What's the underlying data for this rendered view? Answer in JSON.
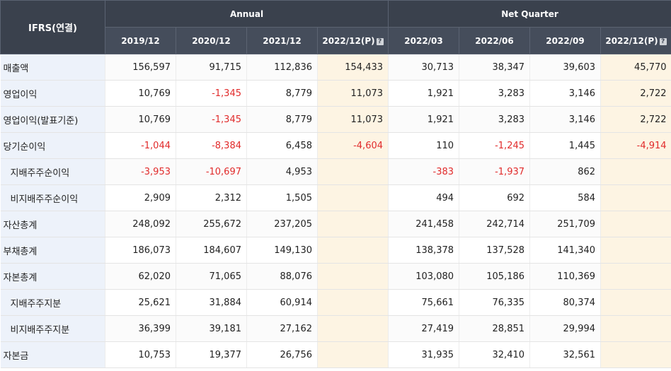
{
  "header": {
    "corner": "IFRS(연결)",
    "annual_label": "Annual",
    "quarter_label": "Net Quarter",
    "periods": [
      {
        "label": "2019/12",
        "estimate": false
      },
      {
        "label": "2020/12",
        "estimate": false
      },
      {
        "label": "2021/12",
        "estimate": false
      },
      {
        "label": "2022/12(P)",
        "estimate": true
      },
      {
        "label": "2022/03",
        "estimate": false
      },
      {
        "label": "2022/06",
        "estimate": false
      },
      {
        "label": "2022/09",
        "estimate": false
      },
      {
        "label": "2022/12(P)",
        "estimate": true
      }
    ],
    "help_icon": "question-mark-icon"
  },
  "colors": {
    "header_bg": "#3c4451",
    "label_bg": "#edf2fa",
    "estimate_bg": "#fdf4e3",
    "negative": "#e12b2b"
  },
  "rows": [
    {
      "label": "매출액",
      "indent": false,
      "values": [
        "156,597",
        "91,715",
        "112,836",
        "154,433",
        "30,713",
        "38,347",
        "39,603",
        "45,770"
      ]
    },
    {
      "label": "영업이익",
      "indent": false,
      "values": [
        "10,769",
        "-1,345",
        "8,779",
        "11,073",
        "1,921",
        "3,283",
        "3,146",
        "2,722"
      ]
    },
    {
      "label": "영업이익(발표기준)",
      "indent": false,
      "values": [
        "10,769",
        "-1,345",
        "8,779",
        "11,073",
        "1,921",
        "3,283",
        "3,146",
        "2,722"
      ]
    },
    {
      "label": "당기순이익",
      "indent": false,
      "values": [
        "-1,044",
        "-8,384",
        "6,458",
        "-4,604",
        "110",
        "-1,245",
        "1,445",
        "-4,914"
      ]
    },
    {
      "label": "지배주주순이익",
      "indent": true,
      "values": [
        "-3,953",
        "-10,697",
        "4,953",
        "",
        "-383",
        "-1,937",
        "862",
        ""
      ]
    },
    {
      "label": "비지배주주순이익",
      "indent": true,
      "values": [
        "2,909",
        "2,312",
        "1,505",
        "",
        "494",
        "692",
        "584",
        ""
      ]
    },
    {
      "label": "자산총계",
      "indent": false,
      "values": [
        "248,092",
        "255,672",
        "237,205",
        "",
        "241,458",
        "242,714",
        "251,709",
        ""
      ]
    },
    {
      "label": "부채총계",
      "indent": false,
      "values": [
        "186,073",
        "184,607",
        "149,130",
        "",
        "138,378",
        "137,528",
        "141,340",
        ""
      ]
    },
    {
      "label": "자본총계",
      "indent": false,
      "values": [
        "62,020",
        "71,065",
        "88,076",
        "",
        "103,080",
        "105,186",
        "110,369",
        ""
      ]
    },
    {
      "label": "지배주주지분",
      "indent": true,
      "values": [
        "25,621",
        "31,884",
        "60,914",
        "",
        "75,661",
        "76,335",
        "80,374",
        ""
      ]
    },
    {
      "label": "비지배주주지분",
      "indent": true,
      "values": [
        "36,399",
        "39,181",
        "27,162",
        "",
        "27,419",
        "28,851",
        "29,994",
        ""
      ]
    },
    {
      "label": "자본금",
      "indent": false,
      "values": [
        "10,753",
        "19,377",
        "26,756",
        "",
        "31,935",
        "32,410",
        "32,561",
        ""
      ]
    }
  ]
}
